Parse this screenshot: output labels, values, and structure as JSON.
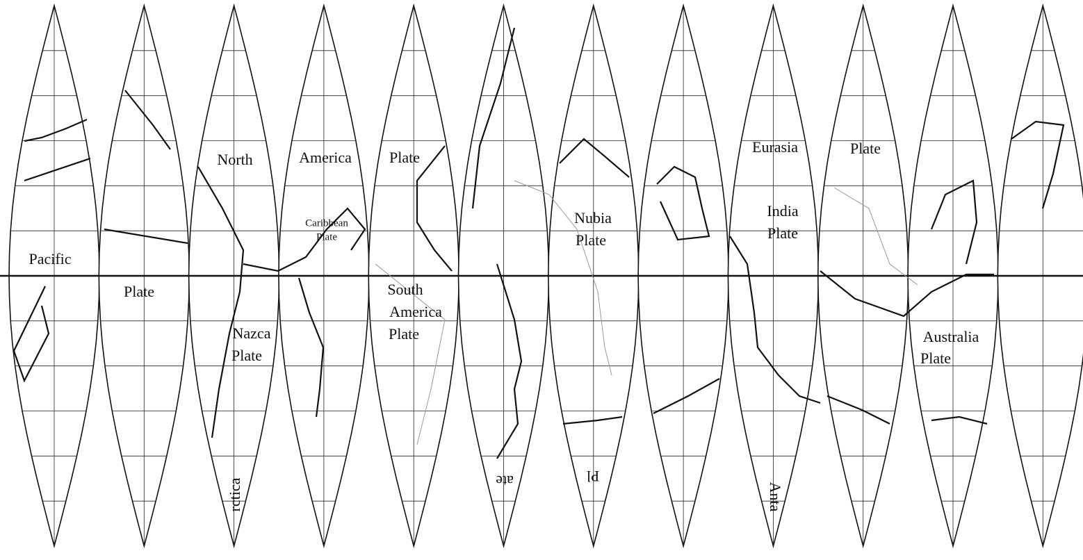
{
  "labels": [
    "Pacific",
    "Plate",
    "North",
    "America",
    "Plate",
    "Caribbean",
    "Plate",
    "Nazca",
    "Plate",
    "South",
    "America",
    "Plate",
    "Nubia",
    "Plate",
    "Eurasia",
    "Plate",
    "India",
    "Plate",
    "Australia",
    "Plate",
    "rctica",
    "ate",
    "Pl",
    "Anta"
  ]
}
